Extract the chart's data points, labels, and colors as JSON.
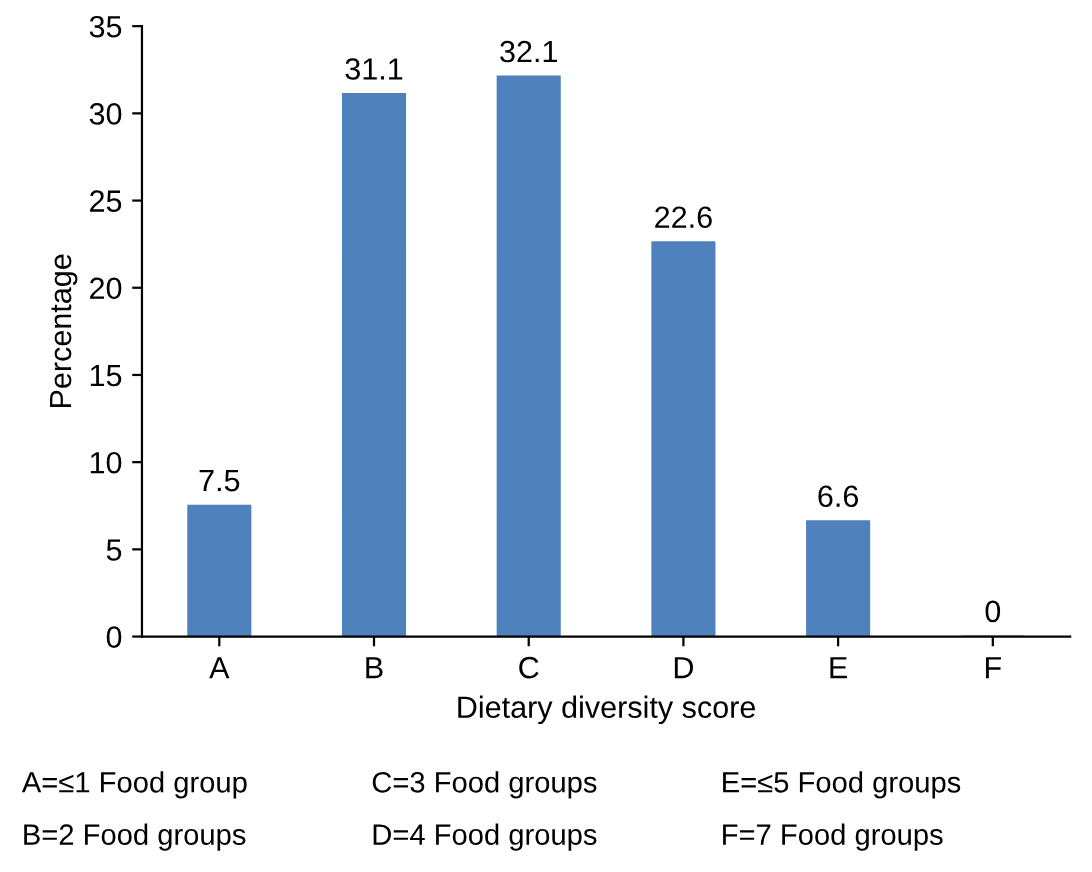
{
  "chart_data": {
    "type": "bar",
    "xlabel": "Dietary diversity score",
    "ylabel": "Percentage",
    "categories": [
      "A",
      "B",
      "C",
      "D",
      "E",
      "F"
    ],
    "values": [
      7.5,
      31.1,
      32.1,
      22.6,
      6.6,
      0
    ],
    "color": "#4f81bd",
    "ylim": [
      0,
      35
    ],
    "yticks": [
      0,
      5,
      10,
      15,
      20,
      25,
      30,
      35
    ],
    "data_labels": true,
    "annotations": [
      "A=≤1 Food group",
      "B=2 Food groups",
      "C=3 Food groups",
      "D=4 Food groups",
      "E=≤5 Food groups",
      "F=7 Food groups"
    ]
  }
}
